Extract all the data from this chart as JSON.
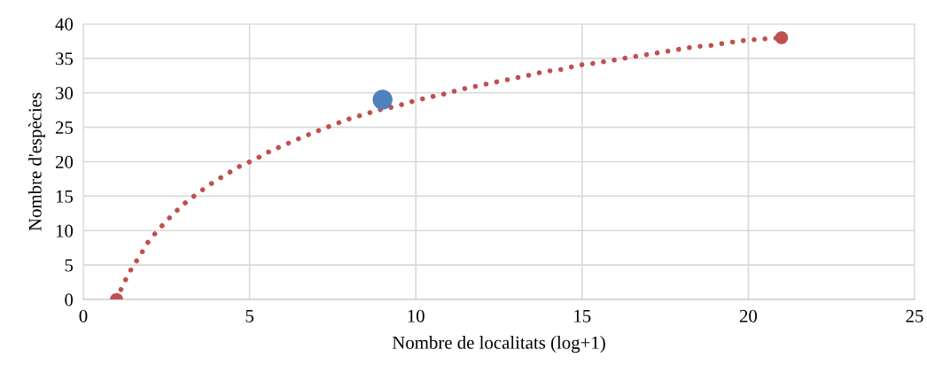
{
  "chart_data": {
    "type": "line",
    "xlabel": "Nombre de localitats (log+1)",
    "ylabel": "Nombre d'espècies",
    "xlim": [
      0,
      25
    ],
    "xticks": [
      0,
      5,
      10,
      15,
      20,
      25
    ],
    "ylim": [
      0,
      40
    ],
    "yticks": [
      0,
      5,
      10,
      15,
      20,
      25,
      30,
      35,
      40
    ],
    "grid": true,
    "line_style": "dotted",
    "marker": "none",
    "series": [
      {
        "color": "#c0504d",
        "x": [
          1,
          1.2,
          1.44,
          1.71,
          1.97,
          2.29,
          2.64,
          3.01,
          3.41,
          3.81,
          4.24,
          4.69,
          5.15,
          5.57,
          6.03,
          6.51,
          6.96,
          7.44,
          7.92,
          8.4,
          8.88,
          9.36,
          9.87,
          10.35,
          10.83,
          11.36,
          11.87,
          12.35,
          12.85,
          13.36,
          13.87,
          14.4,
          14.88,
          15.39,
          15.89,
          16.37,
          16.88,
          17.39,
          17.89,
          18.4,
          18.91,
          19.41,
          19.89,
          20.4,
          21
        ],
        "values": [
          0,
          2.2,
          4.4,
          6.4,
          8.5,
          10.3,
          12.1,
          13.8,
          15.3,
          16.7,
          18.0,
          19.3,
          20.3,
          21.4,
          22.4,
          23.4,
          24.3,
          25.2,
          26.1,
          26.8,
          27.5,
          28.0,
          28.7,
          29.3,
          29.8,
          30.5,
          31.0,
          31.5,
          32.0,
          32.5,
          33.1,
          33.4,
          34.0,
          34.3,
          34.7,
          35.1,
          35.5,
          35.9,
          36.3,
          36.7,
          36.9,
          37.3,
          37.6,
          37.8,
          38
        ]
      },
      {
        "type": "scatter",
        "color": "#c0504d",
        "marker": "circle",
        "x": [
          1,
          21
        ],
        "values": [
          0,
          38
        ]
      },
      {
        "type": "scatter",
        "color": "#4f81bd",
        "marker": "circle",
        "x": [
          9
        ],
        "values": [
          29
        ]
      }
    ]
  }
}
